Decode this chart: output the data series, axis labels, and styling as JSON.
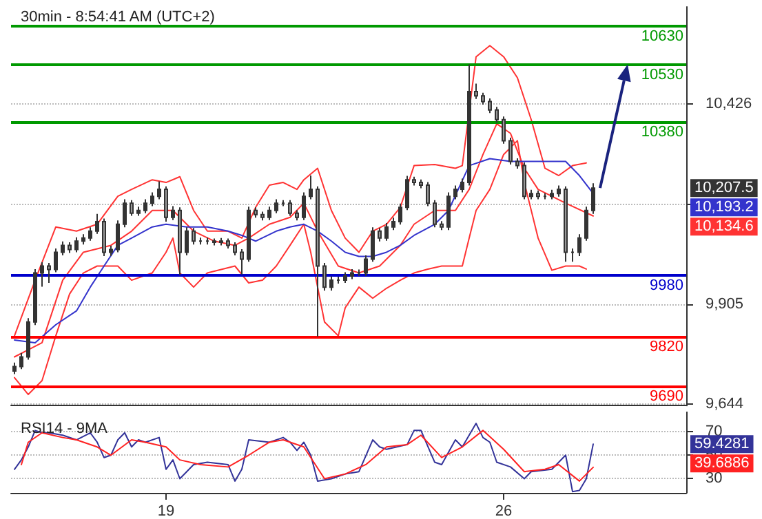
{
  "chart_data": [
    {
      "type": "candlestick",
      "title": "30min - 8:54:41 AM (UTC+2)",
      "color": "#333333",
      "categories": [
        null,
        null,
        null,
        null,
        null,
        null,
        null,
        null,
        null,
        null,
        null,
        null,
        null,
        null,
        null,
        null,
        null,
        null,
        null,
        null,
        null,
        null,
        "19",
        null,
        null,
        null,
        null,
        null,
        null,
        null,
        null,
        null,
        null,
        null,
        null,
        null,
        null,
        null,
        null,
        null,
        null,
        null,
        null,
        null,
        null,
        null,
        null,
        null,
        null,
        null,
        null,
        null,
        null,
        null,
        null,
        null,
        null,
        null,
        null,
        null,
        null,
        null,
        null,
        null,
        null,
        null,
        null,
        null,
        null,
        null,
        null,
        "26",
        null,
        null,
        null,
        null,
        null,
        null,
        null,
        null,
        null,
        null,
        null,
        null,
        null,
        null,
        null,
        null,
        null,
        null,
        null,
        null,
        null,
        null,
        null,
        null,
        null,
        null
      ],
      "ohlc": [
        [
          9730,
          9752,
          9722,
          9742
        ],
        [
          9742,
          9777,
          9735,
          9767
        ],
        [
          9767,
          9868,
          9760,
          9858
        ],
        [
          9858,
          9996,
          9850,
          9986
        ],
        [
          9986,
          10014,
          9950,
          10004
        ],
        [
          10004,
          10012,
          9960,
          9995
        ],
        [
          9995,
          10050,
          9988,
          10040
        ],
        [
          10040,
          10068,
          10032,
          10058
        ],
        [
          10058,
          10066,
          10038,
          10047
        ],
        [
          10047,
          10079,
          10040,
          10069
        ],
        [
          10069,
          10087,
          10060,
          10077
        ],
        [
          10077,
          10105,
          10070,
          10095
        ],
        [
          10095,
          10140,
          10088,
          10120
        ],
        [
          10120,
          10128,
          10030,
          10040
        ],
        [
          10040,
          10057,
          10030,
          10047
        ],
        [
          10047,
          10123,
          10040,
          10113
        ],
        [
          10113,
          10178,
          10105,
          10168
        ],
        [
          10168,
          10176,
          10135,
          10142
        ],
        [
          10142,
          10159,
          10135,
          10149
        ],
        [
          10149,
          10178,
          10142,
          10168
        ],
        [
          10168,
          10196,
          10160,
          10186
        ],
        [
          10186,
          10225,
          10178,
          10204
        ],
        [
          10204,
          10212,
          10120,
          10131
        ],
        [
          10131,
          10160,
          10124,
          10149
        ],
        [
          10149,
          10157,
          9980,
          10040
        ],
        [
          10040,
          10105,
          10032,
          10095
        ],
        [
          10095,
          10103,
          10060,
          10069
        ],
        [
          10069,
          10078,
          10060,
          10069
        ],
        [
          10069,
          10078,
          10060,
          10069
        ],
        [
          10069,
          10076,
          10058,
          10066
        ],
        [
          10066,
          10077,
          10058,
          10069
        ],
        [
          10069,
          10076,
          10050,
          10058
        ],
        [
          10058,
          10066,
          10032,
          10040
        ],
        [
          10040,
          10048,
          9982,
          10022
        ],
        [
          10022,
          10159,
          10015,
          10149
        ],
        [
          10149,
          10157,
          10130,
          10138
        ],
        [
          10138,
          10146,
          10123,
          10131
        ],
        [
          10131,
          10159,
          10124,
          10149
        ],
        [
          10149,
          10178,
          10142,
          10168
        ],
        [
          10168,
          10176,
          10160,
          10168
        ],
        [
          10168,
          10176,
          10135,
          10142
        ],
        [
          10142,
          10150,
          10123,
          10131
        ],
        [
          10131,
          10196,
          10124,
          10186
        ],
        [
          10186,
          10240,
          10178,
          10204
        ],
        [
          10204,
          10212,
          9820,
          10004
        ],
        [
          10004,
          10012,
          9940,
          9949
        ],
        [
          9949,
          9977,
          9940,
          9967
        ],
        [
          9967,
          9976,
          9958,
          9967
        ],
        [
          9967,
          9988,
          9960,
          9978
        ],
        [
          9978,
          9996,
          9970,
          9986
        ],
        [
          9986,
          9995,
          9978,
          9986
        ],
        [
          9986,
          10032,
          9978,
          10022
        ],
        [
          10022,
          10105,
          10015,
          10095
        ],
        [
          10095,
          10103,
          10068,
          10077
        ],
        [
          10077,
          10116,
          10070,
          10106
        ],
        [
          10106,
          10130,
          10098,
          10120
        ],
        [
          10120,
          10167,
          10112,
          10157
        ],
        [
          10157,
          10239,
          10150,
          10229
        ],
        [
          10229,
          10237,
          10214,
          10222
        ],
        [
          10222,
          10230,
          10207,
          10215
        ],
        [
          10215,
          10223,
          10160,
          10168
        ],
        [
          10168,
          10176,
          10105,
          10113
        ],
        [
          10113,
          10121,
          10098,
          10106
        ],
        [
          10106,
          10196,
          10098,
          10186
        ],
        [
          10186,
          10214,
          10178,
          10204
        ],
        [
          10204,
          10232,
          10196,
          10222
        ],
        [
          10222,
          10530,
          10214,
          10459
        ],
        [
          10459,
          10480,
          10440,
          10448
        ],
        [
          10448,
          10456,
          10425,
          10433
        ],
        [
          10433,
          10441,
          10403,
          10411
        ],
        [
          10411,
          10419,
          10378,
          10386
        ],
        [
          10386,
          10394,
          10323,
          10331
        ],
        [
          10331,
          10339,
          10269,
          10277
        ],
        [
          10277,
          10285,
          10258,
          10266
        ],
        [
          10266,
          10274,
          10178,
          10186
        ],
        [
          10186,
          10203,
          10178,
          10193
        ],
        [
          10193,
          10201,
          10178,
          10186
        ],
        [
          10186,
          10194,
          10178,
          10186
        ],
        [
          10186,
          10203,
          10178,
          10193
        ],
        [
          10193,
          10214,
          10185,
          10204
        ],
        [
          10204,
          10212,
          10015,
          10040
        ],
        [
          10040,
          10050,
          10015,
          10040
        ],
        [
          10040,
          10087,
          10030,
          10077
        ],
        [
          10077,
          10159,
          10070,
          10149
        ],
        [
          10149,
          10220,
          10140,
          10207.5
        ],
        null,
        null,
        null,
        null,
        null,
        null,
        null,
        null,
        null,
        null,
        null,
        null,
        null
      ],
      "series": [
        {
          "type": "line",
          "color": "#ff3333",
          "values": [
            9822,
            null,
            null,
            9967,
            null,
            null,
            10106,
            null,
            null,
            10095,
            null,
            null,
            10113,
            null,
            null,
            10186,
            null,
            10204,
            null,
            null,
            10229,
            null,
            10222,
            null,
            10237,
            null,
            10149,
            null,
            10095,
            null,
            null,
            10095,
            null,
            10077,
            null,
            10157,
            null,
            10215,
            null,
            10222,
            null,
            10204,
            10229,
            null,
            10259,
            null,
            10149,
            null,
            10077,
            null,
            10040,
            null,
            10095,
            null,
            10113,
            null,
            10157,
            null,
            10266,
            null,
            null,
            10269,
            null,
            null,
            10259,
            10266,
            null,
            10550,
            null,
            10579,
            null,
            10550,
            null,
            10495,
            null,
            10386,
            null,
            10259,
            null,
            10240,
            null,
            10266,
            null,
            10273,
            null,
            null,
            null,
            null,
            null,
            null,
            null,
            null,
            null,
            null,
            null,
            null,
            null,
            null
          ]
        },
        {
          "type": "line",
          "color": "#ff3333",
          "values": [
            9713,
            null,
            9669,
            null,
            9705,
            null,
            9822,
            null,
            9931,
            null,
            9986,
            null,
            10004,
            null,
            null,
            10004,
            null,
            9967,
            null,
            null,
            9986,
            null,
            10040,
            10077,
            9986,
            null,
            9949,
            null,
            9986,
            null,
            null,
            null,
            10004,
            null,
            9960,
            null,
            9967,
            null,
            10004,
            null,
            10058,
            null,
            10113,
            10040,
            null,
            9858,
            null,
            9822,
            9895,
            null,
            9949,
            null,
            9920,
            null,
            9946,
            null,
            9967,
            null,
            9986,
            null,
            9996,
            null,
            10004,
            null,
            null,
            10004,
            10077,
            10149,
            null,
            10204,
            null,
            10295,
            null,
            10331,
            10222,
            null,
            10077,
            null,
            9993,
            null,
            10004,
            null,
            10004,
            9996,
            null,
            null,
            null,
            null,
            null,
            null,
            null,
            null,
            null,
            null,
            null,
            null,
            null,
            null
          ]
        },
        {
          "type": "line",
          "color": "#ff3333",
          "values": [
            9767,
            null,
            null,
            null,
            9804,
            null,
            null,
            9967,
            null,
            null,
            10040,
            null,
            null,
            null,
            10058,
            null,
            null,
            10095,
            null,
            null,
            10149,
            null,
            null,
            10149,
            null,
            null,
            10095,
            null,
            null,
            10069,
            null,
            null,
            10058,
            null,
            10077,
            null,
            null,
            10113,
            null,
            null,
            10131,
            null,
            10168,
            null,
            10095,
            null,
            null,
            10004,
            null,
            null,
            9986,
            null,
            null,
            10004,
            null,
            null,
            10058,
            null,
            10113,
            null,
            null,
            10149,
            null,
            null,
            10149,
            null,
            10204,
            null,
            10295,
            null,
            10375,
            null,
            10350,
            null,
            10259,
            null,
            10204,
            null,
            10186,
            null,
            10168,
            null,
            null,
            null,
            10134.6,
            null,
            null,
            null,
            null,
            null,
            null,
            null,
            null,
            null,
            null,
            null,
            null,
            null
          ]
        },
        {
          "type": "line",
          "color": "#3333cc",
          "values": [
            9811,
            null,
            null,
            9804,
            null,
            null,
            9851,
            null,
            null,
            9887,
            null,
            9949,
            null,
            10004,
            null,
            10058,
            null,
            10077,
            null,
            null,
            10106,
            null,
            10113,
            null,
            null,
            10106,
            null,
            null,
            10106,
            null,
            null,
            10095,
            null,
            10084,
            null,
            10069,
            null,
            null,
            10095,
            null,
            10106,
            null,
            10113,
            null,
            10095,
            null,
            10069,
            null,
            10040,
            null,
            10029,
            null,
            10029,
            null,
            10040,
            null,
            10058,
            null,
            10084,
            null,
            null,
            10113,
            null,
            10149,
            null,
            null,
            10266,
            null,
            null,
            10284,
            null,
            null,
            10277,
            null,
            10277,
            null,
            null,
            10277,
            null,
            null,
            10277,
            null,
            10240,
            null,
            10193.2,
            null,
            null,
            null,
            null,
            null,
            null,
            null,
            null,
            null,
            null,
            null,
            null,
            null
          ]
        }
      ],
      "ylim": [
        9640,
        10680
      ],
      "yticks": [
        {
          "value": 9644,
          "label": "9,644"
        },
        {
          "value": 9905,
          "label": "9,905"
        },
        {
          "value": 10165,
          "label": null
        },
        {
          "value": 10426,
          "label": "10,426"
        }
      ],
      "tick_labels": "y",
      "grid": "y",
      "ref_lines": [
        {
          "axis": "y",
          "value": 10630,
          "label": "10630",
          "color": "#009900"
        },
        {
          "axis": "y",
          "value": 10530,
          "label": "10530",
          "color": "#009900"
        },
        {
          "axis": "y",
          "value": 10380,
          "label": "10380",
          "color": "#009900"
        },
        {
          "axis": "y",
          "value": 9980,
          "label": "9980",
          "color": "#0000cc"
        },
        {
          "axis": "y",
          "value": 9820,
          "label": "9820",
          "color": "#ff0000"
        },
        {
          "axis": "y",
          "value": 9690,
          "label": "9690",
          "color": "#ff0000"
        }
      ],
      "annotations": [
        "10,207.5",
        "10,193.2",
        "10,134.6"
      ]
    },
    {
      "type": "line",
      "title": "RSI14 - 9MA",
      "categories": [
        null,
        null,
        null,
        null,
        null,
        null,
        null,
        null,
        null,
        null,
        null,
        null,
        null,
        null,
        null,
        null,
        null,
        null,
        null,
        null,
        null,
        null,
        "19",
        null,
        null,
        null,
        null,
        null,
        null,
        null,
        null,
        null,
        null,
        null,
        null,
        null,
        null,
        null,
        null,
        null,
        null,
        null,
        null,
        null,
        null,
        null,
        null,
        null,
        null,
        null,
        null,
        null,
        null,
        null,
        null,
        null,
        null,
        null,
        null,
        null,
        null,
        null,
        null,
        null,
        null,
        null,
        null,
        null,
        null,
        null,
        null,
        "26",
        null,
        null,
        null,
        null,
        null,
        null,
        null,
        null,
        null,
        null,
        null,
        null,
        null,
        null,
        null,
        null,
        null,
        null,
        null,
        null,
        null,
        null,
        null,
        null,
        null,
        null
      ],
      "series": [
        {
          "color": "#333399",
          "values": [
            38,
            46,
            57,
            71,
            69,
            69,
            null,
            67,
            null,
            63,
            null,
            69,
            61,
            48,
            50,
            63,
            69,
            57,
            63,
            61,
            null,
            65,
            38,
            46,
            30,
            null,
            42,
            null,
            44,
            null,
            null,
            42,
            28,
            38,
            63,
            null,
            null,
            61,
            null,
            65,
            61,
            54,
            61,
            50,
            28,
            null,
            30,
            null,
            34,
            null,
            36,
            null,
            63,
            57,
            55,
            null,
            null,
            59,
            71,
            71,
            null,
            44,
            42,
            null,
            63,
            57,
            null,
            77,
            65,
            61,
            44,
            null,
            40,
            null,
            30,
            36,
            null,
            null,
            38,
            null,
            50,
            19,
            20,
            30,
            59.4281,
            null,
            null,
            null,
            null,
            null,
            null,
            null,
            null,
            null,
            null,
            null,
            null,
            null
          ]
        },
        {
          "color": "#ff2222",
          "values": [
            null,
            42,
            61,
            null,
            69,
            null,
            null,
            65,
            null,
            63,
            null,
            null,
            57,
            null,
            50,
            null,
            null,
            63,
            null,
            61,
            null,
            null,
            57,
            null,
            46,
            null,
            null,
            42,
            null,
            null,
            null,
            40,
            null,
            null,
            50,
            null,
            null,
            61,
            null,
            63,
            null,
            null,
            57,
            null,
            null,
            30,
            null,
            null,
            34,
            null,
            null,
            42,
            null,
            null,
            57,
            null,
            null,
            59,
            null,
            67,
            null,
            null,
            48,
            null,
            null,
            57,
            null,
            null,
            71,
            null,
            null,
            55,
            null,
            null,
            36,
            null,
            null,
            38,
            null,
            42,
            null,
            null,
            28,
            null,
            39.6886,
            null,
            null,
            null,
            null,
            null,
            null,
            null,
            null,
            null,
            null,
            null,
            null,
            null
          ]
        }
      ],
      "ylim": [
        18,
        87
      ],
      "yticks": [
        30,
        50,
        70
      ],
      "grid": "y",
      "annotations": [
        "59.4281",
        "39.6886"
      ]
    }
  ]
}
